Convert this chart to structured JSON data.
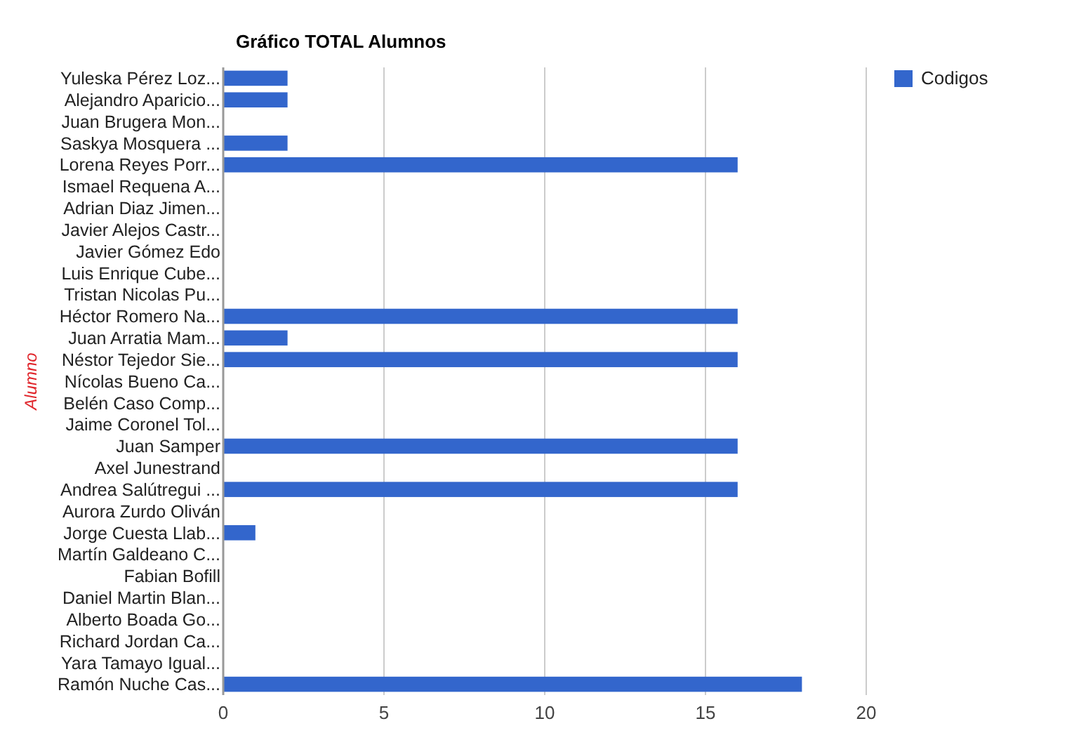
{
  "chart_data": {
    "type": "bar",
    "orientation": "horizontal",
    "title": "Gráfico TOTAL Alumnos",
    "ylabel": "Alumno",
    "categories": [
      "Yuleska Pérez Loz...",
      "Alejandro Aparicio...",
      "Juan Brugera Mon...",
      "Saskya Mosquera ...",
      "Lorena Reyes Porr...",
      "Ismael Requena A...",
      "Adrian Diaz Jimen...",
      "Javier Alejos Castr...",
      "Javier Gómez Edo",
      "Luis Enrique Cube...",
      "Tristan Nicolas Pu...",
      "Héctor Romero Na...",
      "Juan Arratia Mam...",
      "Néstor Tejedor Sie...",
      "Nícolas Bueno Ca...",
      "Belén Caso Comp...",
      "Jaime Coronel Tol...",
      "Juan Samper",
      "Axel Junestrand",
      "Andrea Salútregui ...",
      "Aurora Zurdo Oliván",
      "Jorge Cuesta Llab...",
      "Martín Galdeano C...",
      "Fabian Bofill",
      "Daniel Martin Blan...",
      "Alberto Boada Go...",
      "Richard Jordan Ca...",
      "Yara Tamayo Igual...",
      "Ramón Nuche Cas..."
    ],
    "series": [
      {
        "name": "Codigos",
        "color": "#3366cc",
        "values": [
          2,
          2,
          0,
          2,
          16,
          0,
          0,
          0,
          0,
          0,
          0,
          16,
          2,
          16,
          0,
          0,
          0,
          16,
          0,
          16,
          0,
          1,
          0,
          0,
          0,
          0,
          0,
          0,
          18
        ]
      }
    ],
    "xlim": [
      0,
      20
    ],
    "xticks": [
      0,
      5,
      10,
      15,
      20
    ],
    "grid": "x",
    "legend": "top right"
  }
}
